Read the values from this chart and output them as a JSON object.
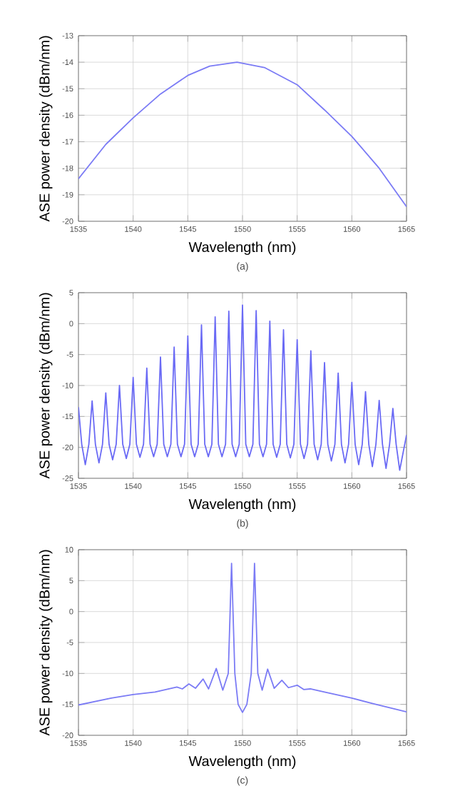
{
  "chart_data": [
    {
      "type": "line",
      "xlabel": "Wavelength (nm)",
      "ylabel": "ASE power density (dBm/nm)",
      "annotations": [
        "(a)"
      ],
      "color": "#7b7bf5",
      "grid": true,
      "line_style": "solid",
      "xlim": [
        1535,
        1565
      ],
      "xticks": [
        1535,
        1540,
        1545,
        1550,
        1555,
        1560,
        1565
      ],
      "ylim": [
        -20,
        -13
      ],
      "yticks": [
        -20,
        -19,
        -18,
        -17,
        -16,
        -15,
        -14,
        -13
      ],
      "x": [
        1535,
        1537.5,
        1540,
        1542.5,
        1545,
        1547,
        1549.5,
        1552,
        1555,
        1557.5,
        1560,
        1562.5,
        1565
      ],
      "values": [
        -18.4,
        -17.1,
        -16.1,
        -15.2,
        -14.5,
        -14.15,
        -14.0,
        -14.2,
        -14.85,
        -15.8,
        -16.8,
        -18.0,
        -19.45
      ]
    },
    {
      "type": "line",
      "xlabel": "Wavelength (nm)",
      "ylabel": "ASE power density (dBm/nm)",
      "annotations": [
        "(b)"
      ],
      "color": "#6a6af5",
      "grid": true,
      "line_style": "solid",
      "xlim": [
        1535,
        1565
      ],
      "xticks": [
        1535,
        1540,
        1545,
        1550,
        1555,
        1560,
        1565
      ],
      "ylim": [
        -25,
        5
      ],
      "yticks": [
        -25,
        -20,
        -15,
        -10,
        -5,
        0,
        5
      ],
      "x": [
        1535,
        1535.3,
        1535.625,
        1535.95,
        1536.25,
        1536.55,
        1536.875,
        1537.2,
        1537.5,
        1537.8,
        1538.125,
        1538.45,
        1538.75,
        1539.05,
        1539.375,
        1539.7,
        1540,
        1540.3,
        1540.625,
        1540.95,
        1541.25,
        1541.55,
        1541.875,
        1542.2,
        1542.5,
        1542.8,
        1543.125,
        1543.45,
        1543.75,
        1544.05,
        1544.375,
        1544.7,
        1545,
        1545.3,
        1545.625,
        1545.95,
        1546.25,
        1546.55,
        1546.875,
        1547.2,
        1547.5,
        1547.8,
        1548.125,
        1548.45,
        1548.75,
        1549.05,
        1549.375,
        1549.7,
        1550,
        1550.3,
        1550.625,
        1550.95,
        1551.25,
        1551.55,
        1551.875,
        1552.2,
        1552.5,
        1552.8,
        1553.125,
        1553.45,
        1553.75,
        1554.05,
        1554.375,
        1554.7,
        1555,
        1555.3,
        1555.625,
        1555.95,
        1556.25,
        1556.55,
        1556.875,
        1557.2,
        1557.5,
        1557.8,
        1558.125,
        1558.45,
        1558.75,
        1559.05,
        1559.375,
        1559.7,
        1560,
        1560.3,
        1560.625,
        1560.95,
        1561.25,
        1561.55,
        1561.875,
        1562.2,
        1562.5,
        1562.8,
        1563.125,
        1563.45,
        1563.75,
        1564.05,
        1564.375,
        1565
      ],
      "values": [
        -13.5,
        -19.5,
        -22.8,
        -19.5,
        -12.5,
        -19.5,
        -22.5,
        -19.5,
        -11.2,
        -19.5,
        -22.0,
        -19.5,
        -10.0,
        -19.5,
        -21.8,
        -19.5,
        -8.7,
        -19.5,
        -21.6,
        -19.5,
        -7.2,
        -19.5,
        -21.5,
        -19.5,
        -5.4,
        -19.5,
        -21.5,
        -19.5,
        -3.8,
        -19.5,
        -21.5,
        -19.5,
        -2.0,
        -19.5,
        -21.5,
        -19.5,
        -0.2,
        -19.5,
        -21.5,
        -19.5,
        1.1,
        -19.5,
        -21.5,
        -19.5,
        2.0,
        -19.5,
        -21.5,
        -19.5,
        3.0,
        -19.5,
        -21.5,
        -19.5,
        2.1,
        -19.5,
        -21.5,
        -19.5,
        0.4,
        -19.5,
        -21.6,
        -19.5,
        -1.0,
        -19.5,
        -21.7,
        -19.5,
        -2.6,
        -19.5,
        -21.8,
        -19.5,
        -4.4,
        -19.5,
        -22.0,
        -19.5,
        -6.3,
        -19.5,
        -22.2,
        -19.5,
        -8.0,
        -19.5,
        -22.5,
        -19.5,
        -9.5,
        -19.5,
        -22.8,
        -19.5,
        -11.0,
        -19.5,
        -23.1,
        -19.5,
        -12.4,
        -19.5,
        -23.4,
        -19.5,
        -13.7,
        -19.5,
        -23.7,
        -18.0
      ]
    },
    {
      "type": "line",
      "xlabel": "Wavelength (nm)",
      "ylabel": "ASE power density (dBm/nm)",
      "annotations": [
        "(c)"
      ],
      "color": "#7b7bf5",
      "grid": true,
      "line_style": "solid",
      "xlim": [
        1535,
        1565
      ],
      "xticks": [
        1535,
        1540,
        1545,
        1550,
        1555,
        1560,
        1565
      ],
      "ylim": [
        -20,
        10
      ],
      "yticks": [
        -20,
        -15,
        -10,
        -5,
        0,
        5,
        10
      ],
      "x": [
        1535,
        1538,
        1540,
        1542,
        1543,
        1544,
        1544.5,
        1545.1,
        1545.7,
        1546.4,
        1546.9,
        1547.6,
        1548.2,
        1548.7,
        1549,
        1549.3,
        1549.6,
        1550,
        1550.4,
        1550.8,
        1551.1,
        1551.4,
        1551.8,
        1552.3,
        1552.9,
        1553.6,
        1554.2,
        1555,
        1555.6,
        1556.2,
        1557.5,
        1560,
        1562,
        1565
      ],
      "values": [
        -15.1,
        -14.0,
        -13.4,
        -13.0,
        -12.6,
        -12.2,
        -12.5,
        -11.7,
        -12.4,
        -10.9,
        -12.5,
        -9.2,
        -12.7,
        -10.0,
        7.8,
        -10.0,
        -15.0,
        -16.3,
        -15.0,
        -10.0,
        7.8,
        -10.0,
        -12.7,
        -9.3,
        -12.4,
        -11.1,
        -12.3,
        -11.9,
        -12.6,
        -12.5,
        -13.0,
        -14.0,
        -14.9,
        -16.2
      ]
    }
  ]
}
